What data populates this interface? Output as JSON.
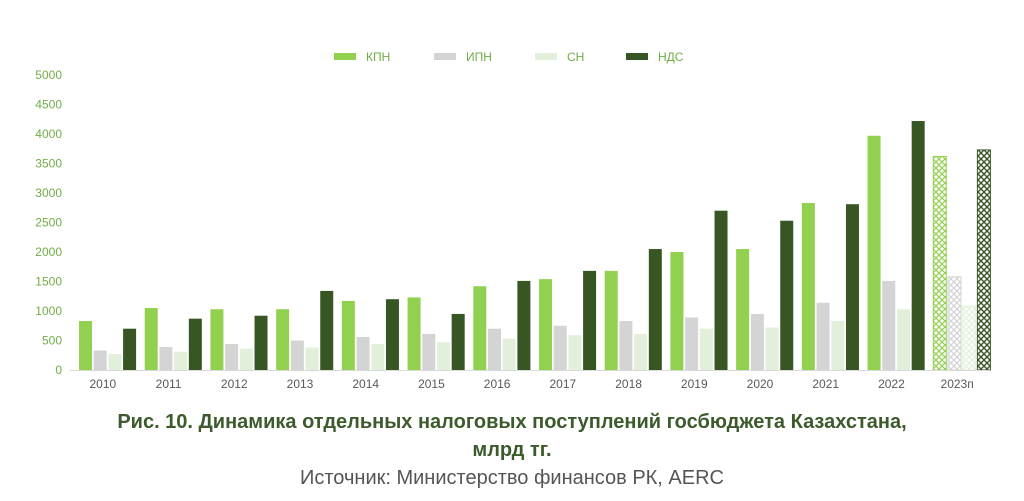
{
  "chart_data": {
    "type": "bar",
    "categories": [
      "2010",
      "2011",
      "2012",
      "2013",
      "2014",
      "2015",
      "2016",
      "2017",
      "2018",
      "2019",
      "2020",
      "2021",
      "2022",
      "2023п"
    ],
    "projected_category": "2023п",
    "series": [
      {
        "name": "КПН",
        "color": "#92d050",
        "values": [
          830,
          1050,
          1030,
          1030,
          1170,
          1230,
          1420,
          1540,
          1680,
          2000,
          2050,
          2830,
          3970,
          3620
        ]
      },
      {
        "name": "ИПН",
        "color": "#d4d4d4",
        "values": [
          330,
          390,
          440,
          500,
          560,
          610,
          700,
          750,
          830,
          890,
          950,
          1140,
          1510,
          1580
        ]
      },
      {
        "name": "СН",
        "color": "#e2efda",
        "values": [
          270,
          310,
          360,
          380,
          440,
          470,
          530,
          590,
          610,
          700,
          720,
          830,
          1030,
          1080
        ]
      },
      {
        "name": "НДС",
        "color": "#375623",
        "values": [
          700,
          870,
          920,
          1340,
          1200,
          950,
          1510,
          1680,
          2050,
          2700,
          2530,
          2810,
          4220,
          3730
        ]
      }
    ],
    "ylim": [
      0,
      5000
    ],
    "yticks": [
      0,
      500,
      1000,
      1500,
      2000,
      2500,
      3000,
      3500,
      4000,
      4500,
      5000
    ],
    "legend_position": "top-center",
    "grid": false,
    "axis_label_color": "#70ad47"
  },
  "caption": {
    "title_line1": "Рис. 10. Динамика отдельных налоговых поступлений госбюджета Казахстана,",
    "title_line2": "млрд тг.",
    "source": "Источник: Министерство финансов РК, AERC"
  }
}
